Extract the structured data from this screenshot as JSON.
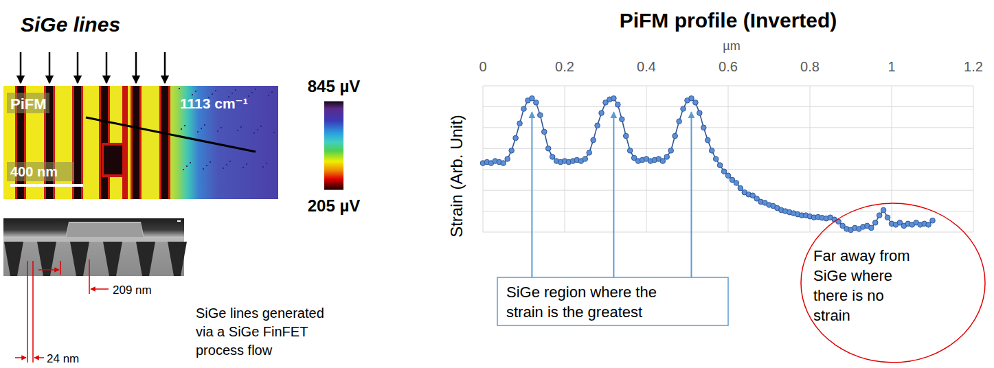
{
  "chart_data": {
    "type": "line",
    "title": "PiFM profile (Inverted)",
    "x_label": "µm",
    "y_label": "Strain (Arb. Unit)",
    "x": [
      0,
      0.01,
      0.02,
      0.03,
      0.04,
      0.05,
      0.06,
      0.07,
      0.08,
      0.09,
      0.1,
      0.11,
      0.12,
      0.13,
      0.14,
      0.15,
      0.16,
      0.17,
      0.18,
      0.19,
      0.2,
      0.21,
      0.22,
      0.23,
      0.24,
      0.25,
      0.26,
      0.27,
      0.28,
      0.29,
      0.3,
      0.31,
      0.32,
      0.33,
      0.34,
      0.35,
      0.36,
      0.37,
      0.38,
      0.39,
      0.4,
      0.41,
      0.42,
      0.43,
      0.44,
      0.45,
      0.46,
      0.47,
      0.48,
      0.49,
      0.5,
      0.51,
      0.52,
      0.53,
      0.54,
      0.55,
      0.56,
      0.57,
      0.58,
      0.59,
      0.6,
      0.61,
      0.62,
      0.63,
      0.64,
      0.65,
      0.66,
      0.67,
      0.68,
      0.69,
      0.7,
      0.71,
      0.72,
      0.73,
      0.74,
      0.75,
      0.76,
      0.77,
      0.78,
      0.79,
      0.8,
      0.81,
      0.82,
      0.83,
      0.84,
      0.85,
      0.86,
      0.87,
      0.88,
      0.89,
      0.9,
      0.91,
      0.92,
      0.93,
      0.94,
      0.95,
      0.96,
      0.97,
      0.98,
      0.99,
      1,
      1.01,
      1.02,
      1.03,
      1.04,
      1.05,
      1.06,
      1.07,
      1.08,
      1.09,
      1.1
    ],
    "values": [
      3.3,
      3.35,
      3.3,
      3.4,
      3.35,
      3.3,
      3.5,
      3.9,
      4.5,
      5.2,
      5.9,
      6.3,
      6.4,
      6.2,
      5.6,
      4.8,
      4.0,
      3.6,
      3.4,
      3.35,
      3.4,
      3.35,
      3.4,
      3.45,
      3.4,
      3.5,
      3.8,
      4.4,
      5.1,
      5.7,
      6.2,
      6.35,
      6.4,
      6.1,
      5.4,
      4.6,
      3.9,
      3.55,
      3.4,
      3.45,
      3.5,
      3.4,
      3.45,
      3.5,
      3.4,
      3.6,
      3.9,
      4.6,
      5.3,
      5.9,
      6.3,
      6.4,
      6.2,
      5.7,
      5.0,
      4.4,
      3.9,
      3.5,
      3.2,
      2.9,
      2.7,
      2.5,
      2.35,
      2.1,
      1.9,
      1.8,
      1.75,
      1.6,
      1.45,
      1.4,
      1.3,
      1.25,
      1.15,
      1.05,
      1.0,
      0.95,
      0.9,
      0.85,
      0.8,
      0.8,
      0.75,
      0.7,
      0.72,
      0.68,
      0.65,
      0.7,
      0.6,
      0.5,
      0.3,
      0.15,
      0.1,
      0.2,
      0.15,
      0.25,
      0.3,
      0.2,
      0.45,
      0.8,
      1.05,
      0.7,
      0.4,
      0.35,
      0.45,
      0.3,
      0.4,
      0.35,
      0.45,
      0.35,
      0.4,
      0.35,
      0.55
    ],
    "color": "#2f5597",
    "marker": "circle",
    "xlim": [
      0,
      1.2
    ],
    "xticks": [
      0,
      0.2,
      0.4,
      0.6,
      0.8,
      1,
      1.2
    ],
    "ylim": [
      0,
      7
    ],
    "yticks": [
      0,
      1,
      2,
      3,
      4,
      5,
      6,
      7
    ],
    "grid": true,
    "tick_labels": "x",
    "annotations": [
      {
        "text": "SiGe region where the strain is the greatest"
      },
      {
        "text": "Far away from SiGe where there is no strain"
      }
    ]
  },
  "left_panel": {
    "title": "SiGe lines",
    "image_label": "PiFM",
    "wavenumber": "1113 cm⁻¹",
    "scale_bar": "400 nm",
    "colorbar": {
      "range": [
        205,
        845
      ],
      "ticks": [
        {
          "value": 845,
          "label": "845 µV"
        },
        {
          "value": 205,
          "label": "205 µV"
        }
      ]
    },
    "sem_dimensions": [
      "209 nm",
      "24 nm"
    ],
    "caption": "SiGe lines generated via a SiGe FinFET process flow"
  }
}
